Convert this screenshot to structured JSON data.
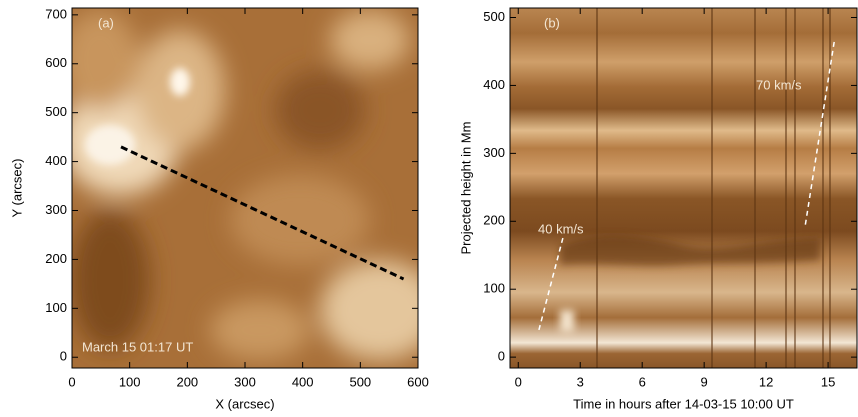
{
  "chart_data": [
    {
      "type": "image",
      "xlabel": "X (arcsec)",
      "ylabel": "Y (arcsec)",
      "xlim": [
        0,
        600
      ],
      "ylim": [
        -22,
        714
      ],
      "xticks": [
        0,
        100,
        200,
        300,
        400,
        500,
        600
      ],
      "yticks": [
        0,
        100,
        200,
        300,
        400,
        500,
        600,
        700
      ],
      "annotations": [
        "(a)",
        "March 15 01:17 UT"
      ],
      "lines": [
        {
          "x": [
            85,
            575
          ],
          "y": [
            430,
            160
          ],
          "color": "#000000"
        }
      ]
    },
    {
      "type": "image",
      "xlabel": "Time in hours after 14-03-15 10:00 UT",
      "ylabel": "Projected height in Mm",
      "xlim": [
        -0.4,
        16.4
      ],
      "ylim": [
        -16,
        514
      ],
      "xticks": [
        0,
        3,
        6,
        9,
        12,
        15
      ],
      "yticks": [
        0,
        100,
        200,
        300,
        400,
        500
      ],
      "annotations": [
        "(b)"
      ],
      "lines": [
        {
          "label": "40 km/s",
          "x": [
            1,
            2.2
          ],
          "y": [
            40,
            180
          ],
          "color": "#ffffff"
        },
        {
          "label": "70 km/s",
          "x": [
            13.9,
            15.3
          ],
          "y": [
            195,
            465
          ],
          "color": "#ffffff"
        }
      ]
    }
  ]
}
